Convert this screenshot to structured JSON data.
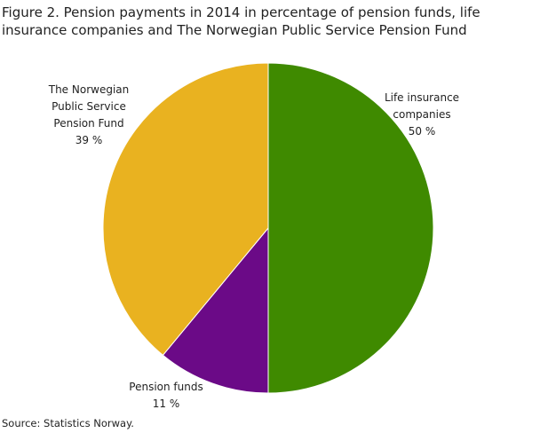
{
  "chart_data": {
    "type": "pie",
    "title": "Figure 2. Pension payments in 2014 in percentage of pension funds, life insurance companies and The Norwegian Public Service Pension Fund",
    "categories": [
      "Life insurance companies",
      "Pension funds",
      "The Norwegian Public Service Pension Fund"
    ],
    "values": [
      50,
      11,
      39
    ],
    "value_labels": [
      "50 %",
      "11 %",
      "39 %"
    ],
    "colors": [
      "#3f8a00",
      "#6b0a87",
      "#e9b220"
    ],
    "source": "Source: Statistics Norway."
  }
}
